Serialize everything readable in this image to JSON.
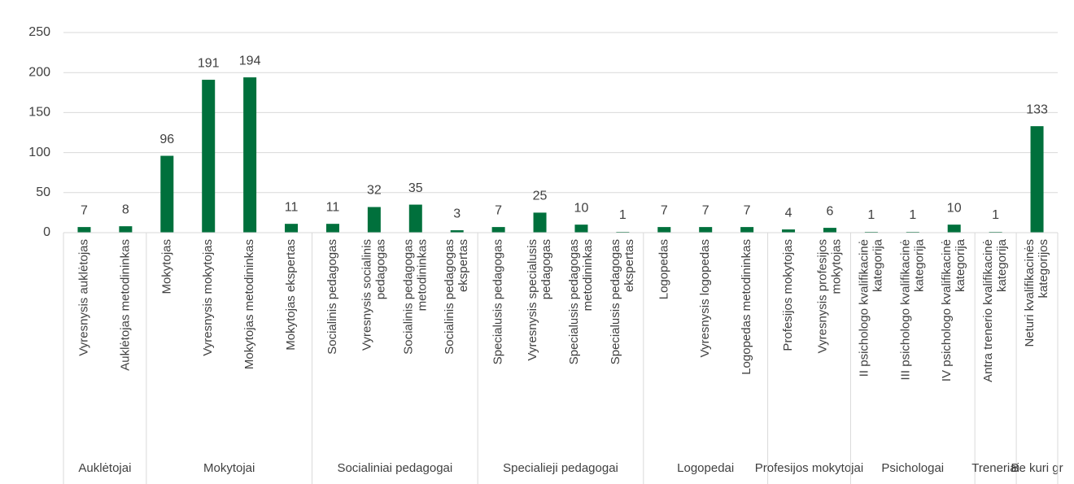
{
  "chart_data": {
    "type": "bar",
    "categories": [
      "Vyresnysis auklėtojas",
      "Auklėtojas metodininkas",
      "Mokytojas",
      "Vyresnysis mokytojas",
      "Mokytojas metodininkas",
      "Mokytojas ekspertas",
      "Socialinis pedagogas",
      "Vyresnysis socialinis pedagogas",
      "Socialinis pedagogas metodininkas",
      "Socialinis pedagogas ekspertas",
      "Specialusis pedagogas",
      "Vyresnysis specialusis pedagogas",
      "Specialusis pedagogas metodininkas",
      "Specialusis pedagogas ekspertas",
      "Logopedas",
      "Vyresnysis logopedas",
      "Logopedas metodininkas",
      "Profesijos mokytojas",
      "Vyresnysis profesijos mokytojas",
      "II psichologo kvalifikacinė kategorija",
      "III psichologo kvalifikacinė kategorija",
      "IV psichologo kvalifikacinė kategorija",
      "Antra trenerio kvalifikacinė kategorija",
      "Neturi kvalifikacinės kategorijos"
    ],
    "values": [
      7,
      8,
      96,
      191,
      194,
      11,
      11,
      32,
      35,
      3,
      7,
      25,
      10,
      1,
      7,
      7,
      7,
      4,
      6,
      1,
      1,
      10,
      1,
      133
    ],
    "groups": [
      {
        "name": "Auklėtojai",
        "count": 2
      },
      {
        "name": "Mokytojai",
        "count": 4
      },
      {
        "name": "Socialiniai pedagogai",
        "count": 4
      },
      {
        "name": "Specialieji pedagogai",
        "count": 4
      },
      {
        "name": "Logopedai",
        "count": 3
      },
      {
        "name": "Profesijos mokytojai",
        "count": 2
      },
      {
        "name": "Psichologai",
        "count": 3
      },
      {
        "name": "Treneriai",
        "count": 1
      },
      {
        "name": "Be kuri gr",
        "count": 1
      }
    ],
    "color": "#00703c",
    "ylim": [
      0,
      250
    ],
    "yticks": [
      0,
      50,
      100,
      150,
      200,
      250
    ],
    "grid": true
  }
}
